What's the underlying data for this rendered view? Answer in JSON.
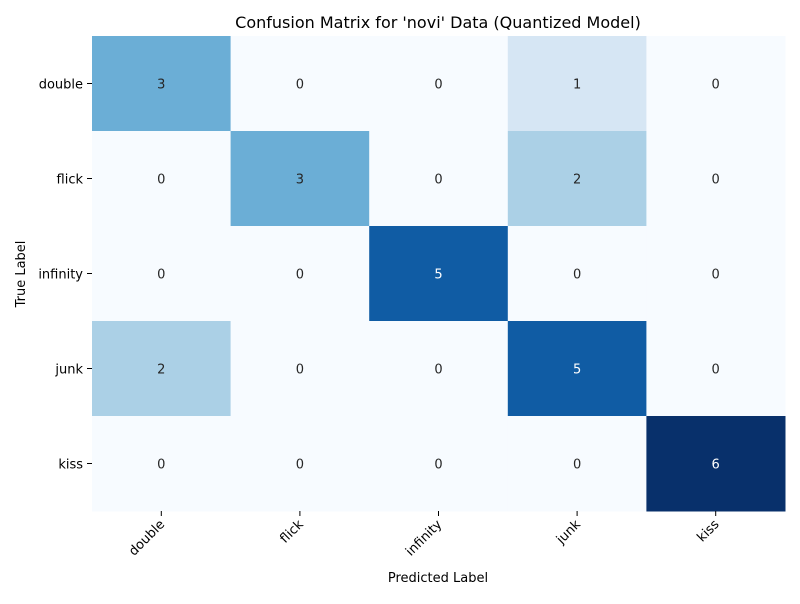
{
  "chart_data": {
    "type": "heatmap",
    "title": "Confusion Matrix for 'novi' Data (Quantized Model)",
    "xlabel": "Predicted Label",
    "ylabel": "True Label",
    "x_categories": [
      "double",
      "flick",
      "infinity",
      "junk",
      "kiss"
    ],
    "y_categories": [
      "double",
      "flick",
      "infinity",
      "junk",
      "kiss"
    ],
    "values": [
      [
        3,
        0,
        0,
        1,
        0
      ],
      [
        0,
        3,
        0,
        2,
        0
      ],
      [
        0,
        0,
        5,
        0,
        0
      ],
      [
        2,
        0,
        0,
        5,
        0
      ],
      [
        0,
        0,
        0,
        0,
        6
      ]
    ],
    "colormap": "Blues",
    "colorbar": false,
    "annotated": true,
    "value_range": [
      0,
      6
    ],
    "colors": {
      "low": "#f7fbff",
      "high": "#08306b",
      "text_dark": "#262626",
      "text_light": "#ffffff"
    }
  }
}
